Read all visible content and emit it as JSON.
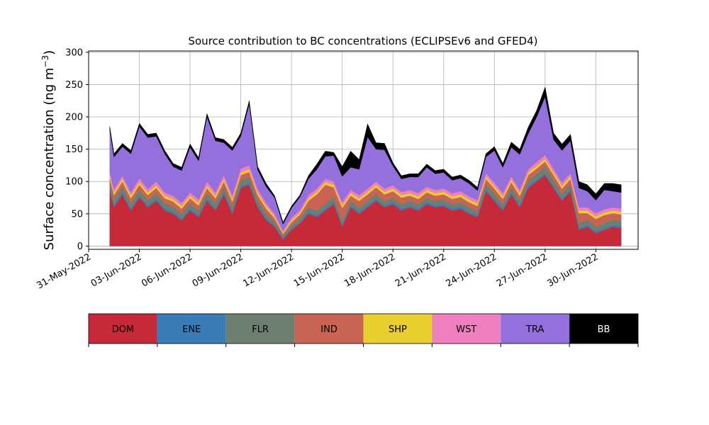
{
  "chart_data": {
    "type": "area",
    "title": "Source contribution to BC concentrations (ECLIPSEv6 and GFED4)",
    "ylabel_main": "Surface concentration (ng m",
    "ylabel_sup": "−3",
    "ylabel_close": ")",
    "xlabel": "",
    "xlim": [
      "2022-05-31",
      "2022-07-02T12:00"
    ],
    "ylim": [
      -5,
      302
    ],
    "grid": true,
    "yticks": [
      0,
      50,
      100,
      150,
      200,
      250,
      300
    ],
    "xticks": [
      {
        "date": "2022-05-31",
        "label": "31-May-2022"
      },
      {
        "date": "2022-06-03",
        "label": "03-Jun-2022"
      },
      {
        "date": "2022-06-06",
        "label": "06-Jun-2022"
      },
      {
        "date": "2022-06-09",
        "label": "09-Jun-2022"
      },
      {
        "date": "2022-06-12",
        "label": "12-Jun-2022"
      },
      {
        "date": "2022-06-15",
        "label": "15-Jun-2022"
      },
      {
        "date": "2022-06-18",
        "label": "18-Jun-2022"
      },
      {
        "date": "2022-06-21",
        "label": "21-Jun-2022"
      },
      {
        "date": "2022-06-24",
        "label": "24-Jun-2022"
      },
      {
        "date": "2022-06-27",
        "label": "27-Jun-2022"
      },
      {
        "date": "2022-06-30",
        "label": "30-Jun-2022"
      }
    ],
    "x": [
      "2022-06-01T06:00",
      "2022-06-01T12:00",
      "2022-06-02T00:00",
      "2022-06-02T12:00",
      "2022-06-03T00:00",
      "2022-06-03T12:00",
      "2022-06-04T00:00",
      "2022-06-04T12:00",
      "2022-06-05T00:00",
      "2022-06-05T12:00",
      "2022-06-06T00:00",
      "2022-06-06T12:00",
      "2022-06-07T00:00",
      "2022-06-07T12:00",
      "2022-06-08T00:00",
      "2022-06-08T12:00",
      "2022-06-09T00:00",
      "2022-06-09T12:00",
      "2022-06-10T00:00",
      "2022-06-10T12:00",
      "2022-06-11T00:00",
      "2022-06-11T12:00",
      "2022-06-12T00:00",
      "2022-06-12T12:00",
      "2022-06-13T00:00",
      "2022-06-13T12:00",
      "2022-06-14T00:00",
      "2022-06-14T12:00",
      "2022-06-15T00:00",
      "2022-06-15T12:00",
      "2022-06-16T00:00",
      "2022-06-16T12:00",
      "2022-06-17T00:00",
      "2022-06-17T12:00",
      "2022-06-18T00:00",
      "2022-06-18T12:00",
      "2022-06-19T00:00",
      "2022-06-19T12:00",
      "2022-06-20T00:00",
      "2022-06-20T12:00",
      "2022-06-21T00:00",
      "2022-06-21T12:00",
      "2022-06-22T00:00",
      "2022-06-22T12:00",
      "2022-06-23T00:00",
      "2022-06-23T12:00",
      "2022-06-24T00:00",
      "2022-06-24T12:00",
      "2022-06-25T00:00",
      "2022-06-25T12:00",
      "2022-06-26T00:00",
      "2022-06-26T12:00",
      "2022-06-27T00:00",
      "2022-06-27T12:00",
      "2022-06-28T00:00",
      "2022-06-28T12:00",
      "2022-06-29T00:00",
      "2022-06-29T12:00",
      "2022-06-30T00:00",
      "2022-06-30T12:00",
      "2022-07-01T00:00",
      "2022-07-01T12:00"
    ],
    "series": [
      {
        "name": "DOM",
        "color": "#c62a38",
        "values": [
          85,
          60,
          80,
          55,
          75,
          60,
          70,
          55,
          50,
          40,
          55,
          45,
          70,
          55,
          80,
          50,
          90,
          95,
          60,
          40,
          30,
          10,
          25,
          35,
          50,
          45,
          55,
          65,
          30,
          60,
          50,
          60,
          70,
          60,
          65,
          55,
          60,
          55,
          65,
          60,
          62,
          55,
          58,
          50,
          45,
          85,
          70,
          55,
          80,
          60,
          90,
          100,
          110,
          90,
          70,
          85,
          25,
          30,
          20,
          25,
          30,
          28
        ]
      },
      {
        "name": "ENE",
        "color": "#3a7cb5",
        "values": [
          3,
          3,
          3,
          3,
          3,
          3,
          3,
          3,
          3,
          3,
          3,
          3,
          3,
          3,
          3,
          3,
          3,
          3,
          3,
          3,
          2,
          2,
          2,
          2,
          3,
          3,
          3,
          3,
          3,
          3,
          3,
          3,
          3,
          3,
          3,
          3,
          3,
          3,
          3,
          3,
          3,
          3,
          3,
          3,
          3,
          3,
          3,
          3,
          3,
          3,
          3,
          3,
          3,
          3,
          3,
          3,
          3,
          3,
          3,
          3,
          3,
          3
        ]
      },
      {
        "name": "FLR",
        "color": "#6d8070",
        "values": [
          10,
          8,
          9,
          8,
          9,
          8,
          9,
          8,
          8,
          7,
          8,
          7,
          9,
          8,
          9,
          8,
          9,
          9,
          8,
          7,
          6,
          4,
          5,
          6,
          7,
          7,
          7,
          8,
          6,
          7,
          7,
          7,
          8,
          7,
          7,
          7,
          7,
          7,
          7,
          7,
          7,
          7,
          7,
          7,
          6,
          8,
          8,
          7,
          8,
          7,
          9,
          9,
          10,
          9,
          8,
          8,
          8,
          8,
          7,
          8,
          8,
          8
        ]
      },
      {
        "name": "IND",
        "color": "#c96454",
        "values": [
          8,
          8,
          8,
          8,
          8,
          8,
          8,
          8,
          8,
          8,
          8,
          8,
          8,
          8,
          8,
          8,
          8,
          8,
          8,
          8,
          5,
          3,
          5,
          6,
          10,
          25,
          30,
          15,
          20,
          8,
          10,
          10,
          10,
          10,
          10,
          10,
          8,
          8,
          8,
          8,
          8,
          8,
          8,
          8,
          8,
          8,
          8,
          8,
          8,
          8,
          8,
          8,
          8,
          8,
          8,
          8,
          15,
          10,
          12,
          12,
          10,
          10
        ]
      },
      {
        "name": "SHP",
        "color": "#e8cf30",
        "values": [
          4,
          4,
          4,
          4,
          4,
          4,
          4,
          4,
          4,
          4,
          4,
          4,
          4,
          4,
          4,
          4,
          4,
          4,
          4,
          4,
          3,
          2,
          3,
          3,
          4,
          4,
          4,
          4,
          4,
          4,
          4,
          4,
          4,
          4,
          4,
          4,
          4,
          4,
          4,
          4,
          4,
          4,
          4,
          4,
          4,
          4,
          4,
          4,
          4,
          4,
          4,
          4,
          4,
          4,
          4,
          4,
          4,
          4,
          4,
          4,
          4,
          4
        ]
      },
      {
        "name": "WST",
        "color": "#f07fbf",
        "values": [
          5,
          5,
          5,
          5,
          6,
          5,
          6,
          5,
          5,
          5,
          5,
          5,
          6,
          5,
          6,
          5,
          6,
          6,
          5,
          5,
          4,
          3,
          4,
          4,
          5,
          5,
          5,
          5,
          5,
          5,
          5,
          5,
          5,
          5,
          5,
          5,
          5,
          5,
          5,
          5,
          5,
          5,
          5,
          5,
          5,
          5,
          5,
          5,
          5,
          5,
          5,
          6,
          6,
          6,
          5,
          5,
          5,
          5,
          5,
          5,
          5,
          5
        ]
      },
      {
        "name": "TRA",
        "color": "#9370db",
        "values": [
          65,
          50,
          45,
          60,
          80,
          80,
          70,
          60,
          45,
          50,
          70,
          60,
          100,
          80,
          50,
          70,
          50,
          95,
          30,
          25,
          25,
          10,
          15,
          20,
          25,
          30,
          35,
          40,
          40,
          35,
          40,
          80,
          50,
          60,
          30,
          20,
          20,
          25,
          30,
          25,
          25,
          20,
          20,
          20,
          15,
          25,
          50,
          40,
          45,
          55,
          55,
          70,
          90,
          45,
          50,
          50,
          30,
          25,
          20,
          30,
          25,
          25
        ]
      },
      {
        "name": "BB",
        "color": "#000000",
        "values": [
          5,
          5,
          5,
          5,
          5,
          5,
          5,
          5,
          5,
          5,
          5,
          5,
          5,
          5,
          5,
          5,
          5,
          5,
          5,
          5,
          3,
          3,
          3,
          3,
          5,
          8,
          8,
          5,
          15,
          25,
          15,
          20,
          10,
          10,
          5,
          5,
          5,
          5,
          5,
          5,
          5,
          5,
          5,
          5,
          5,
          5,
          6,
          6,
          8,
          8,
          10,
          10,
          15,
          10,
          10,
          10,
          10,
          10,
          10,
          10,
          12,
          12
        ]
      }
    ],
    "legend": {
      "placement": "below"
    }
  }
}
